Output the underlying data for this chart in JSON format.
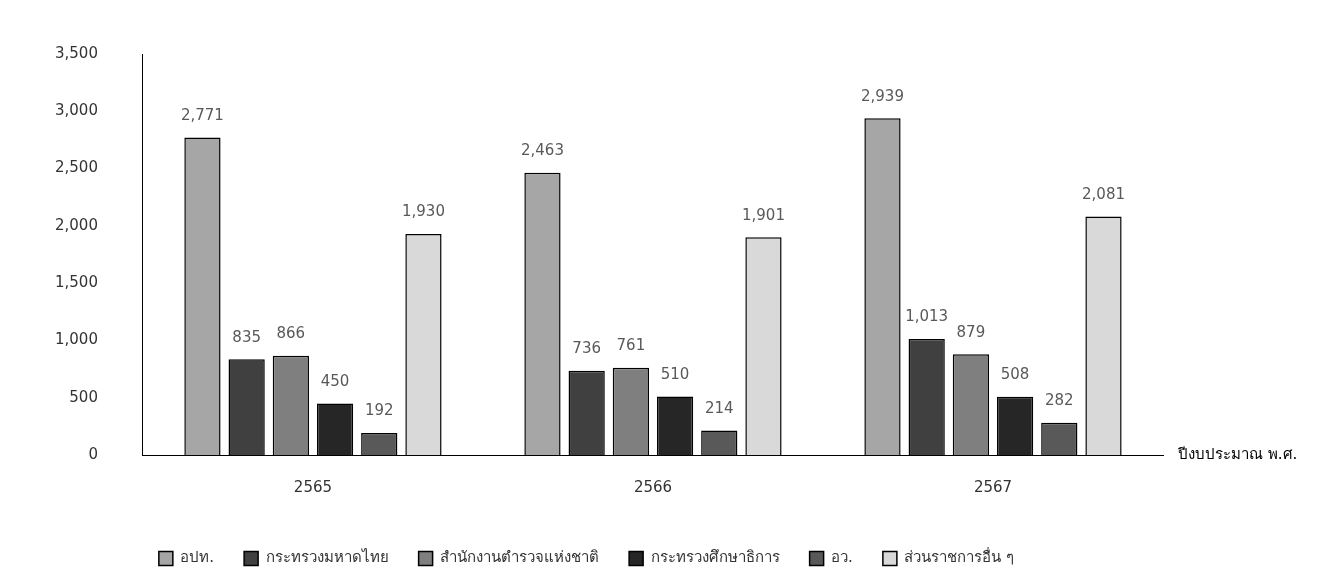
{
  "chart_data": {
    "type": "bar",
    "xlabel": "ปีงบประมาณ พ.ศ.",
    "categories": [
      "2565",
      "2566",
      "2567"
    ],
    "series": [
      {
        "name": "อปท.",
        "color": "#a6a6a6",
        "values": [
          2771,
          2463,
          2939
        ],
        "value_labels": [
          "2,771",
          "2,463",
          "2,939"
        ]
      },
      {
        "name": "กระทรวงมหาดไทย",
        "color": "#404040",
        "values": [
          835,
          736,
          1013
        ],
        "value_labels": [
          "835",
          "736",
          "1,013"
        ]
      },
      {
        "name": "สำนักงานตำรวจแห่งชาติ",
        "color": "#7f7f7f",
        "values": [
          866,
          761,
          879
        ],
        "value_labels": [
          "866",
          "761",
          "879"
        ]
      },
      {
        "name": "กระทรวงศึกษาธิการ",
        "color": "#262626",
        "values": [
          450,
          510,
          508
        ],
        "value_labels": [
          "450",
          "510",
          "508"
        ]
      },
      {
        "name": "อว.",
        "color": "#595959",
        "values": [
          192,
          214,
          282
        ],
        "value_labels": [
          "192",
          "214",
          "282"
        ]
      },
      {
        "name": "ส่วนราชการอื่น ๆ",
        "color": "#d9d9d9",
        "values": [
          1930,
          1901,
          2081
        ],
        "value_labels": [
          "1,930",
          "1,901",
          "2,081"
        ]
      }
    ],
    "ylim": [
      0,
      3500
    ],
    "yticks": [
      {
        "value": 0,
        "label": "0"
      },
      {
        "value": 500,
        "label": "500"
      },
      {
        "value": 1000,
        "label": "1,000"
      },
      {
        "value": 1500,
        "label": "1,500"
      },
      {
        "value": 2000,
        "label": "2,000"
      },
      {
        "value": 2500,
        "label": "2,500"
      },
      {
        "value": 3000,
        "label": "3,000"
      },
      {
        "value": 3500,
        "label": "3,500"
      }
    ],
    "grid": false,
    "legend": "bottom"
  }
}
